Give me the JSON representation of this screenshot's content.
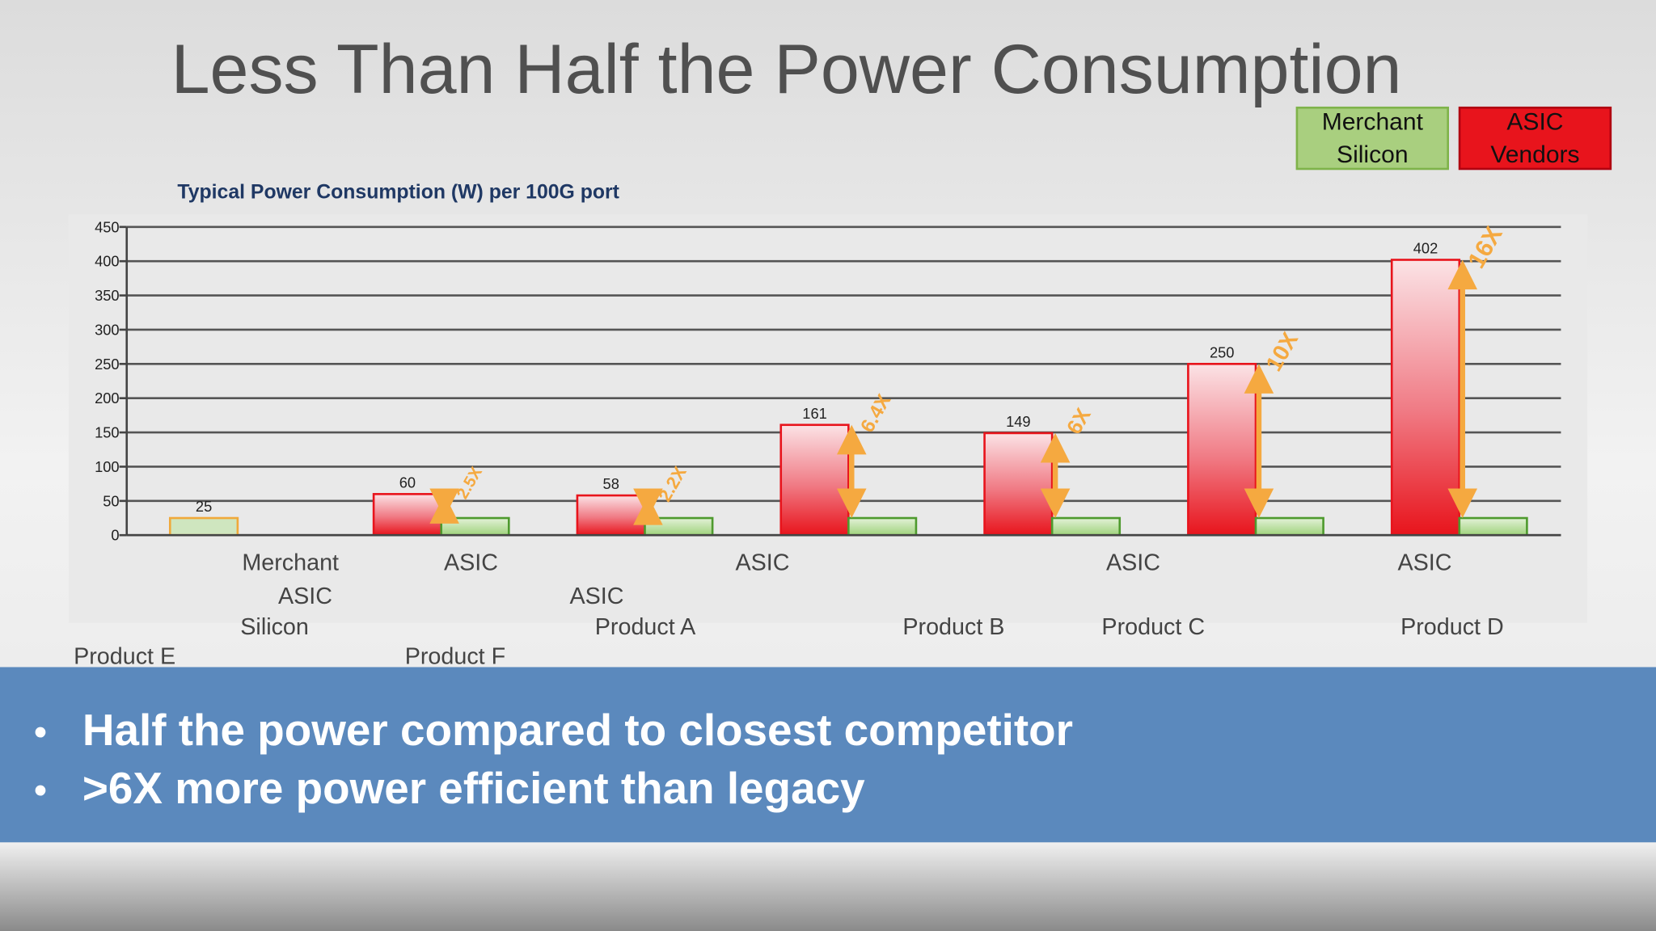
{
  "title": "Less Than Half the Power Consumption",
  "chart_data": {
    "type": "bar",
    "subtitle": "Typical Power Consumption (W) per 100G port",
    "series": [
      {
        "name": "ASIC Vendors",
        "color": "#e8141c",
        "values": [
          25,
          60,
          58,
          161,
          149,
          250,
          402
        ]
      },
      {
        "name": "Merchant Silicon",
        "color": "#7fb34a",
        "values": [
          null,
          25,
          25,
          25,
          25,
          25,
          25
        ]
      }
    ],
    "ylim": [
      0,
      450
    ],
    "yticks": [
      0,
      50,
      100,
      150,
      200,
      250,
      300,
      350,
      400,
      450
    ],
    "grid": true,
    "legend": "top-right",
    "annotations": [
      null,
      "2.5X",
      "2.2X",
      "6.4X",
      "6X",
      "10X",
      "16X"
    ],
    "x_labels": [
      "Merchant",
      "ASIC",
      "ASIC",
      "ASIC",
      "ASIC",
      "ASIC",
      "ASIC",
      "Silicon",
      "Product A",
      "Product B",
      "Product C",
      "Product D",
      "Product E",
      "Product F"
    ]
  },
  "bullets": [
    "Half the power compared to closest competitor",
    ">6X more power efficient than legacy"
  ]
}
